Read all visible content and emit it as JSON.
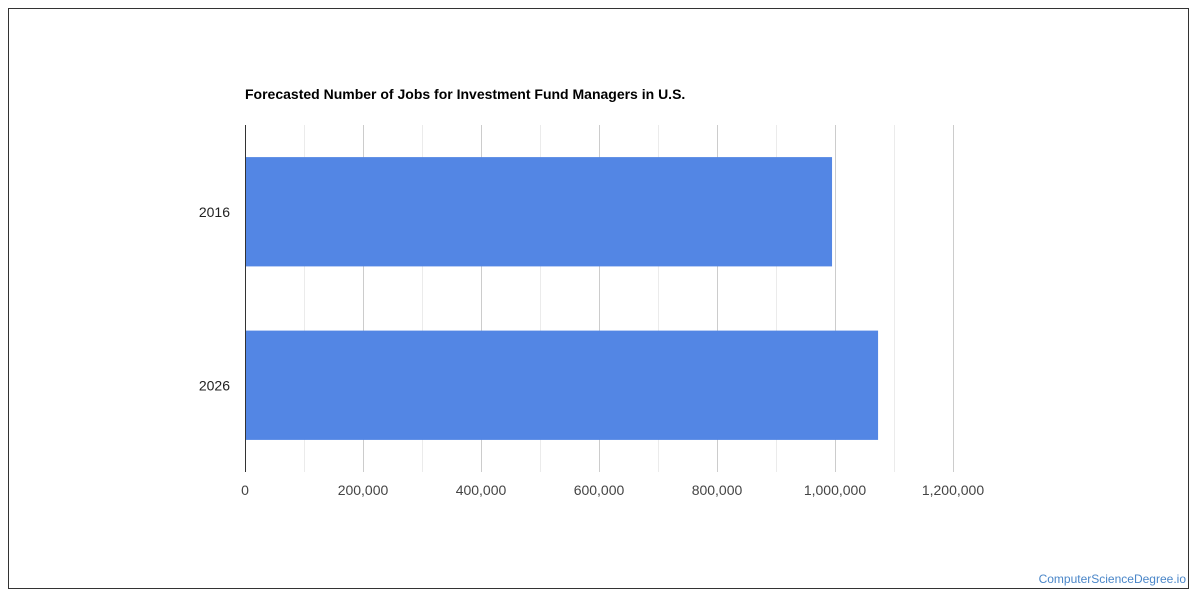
{
  "chart_data": {
    "type": "bar",
    "orientation": "horizontal",
    "title": "Forecasted Number of Jobs for Investment Fund Managers in U.S.",
    "categories": [
      "2016",
      "2026"
    ],
    "values": [
      995000,
      1073000
    ],
    "xlim": [
      0,
      1200000
    ],
    "xticks": [
      0,
      200000,
      400000,
      600000,
      800000,
      1000000,
      1200000
    ],
    "xtick_labels": [
      "0",
      "200,000",
      "400,000",
      "600,000",
      "800,000",
      "1,000,000",
      "1,200,000"
    ],
    "xlabel": "",
    "ylabel": "",
    "grid": true,
    "bar_color": "#5386e4"
  },
  "watermark": "ComputerScienceDegree.io"
}
